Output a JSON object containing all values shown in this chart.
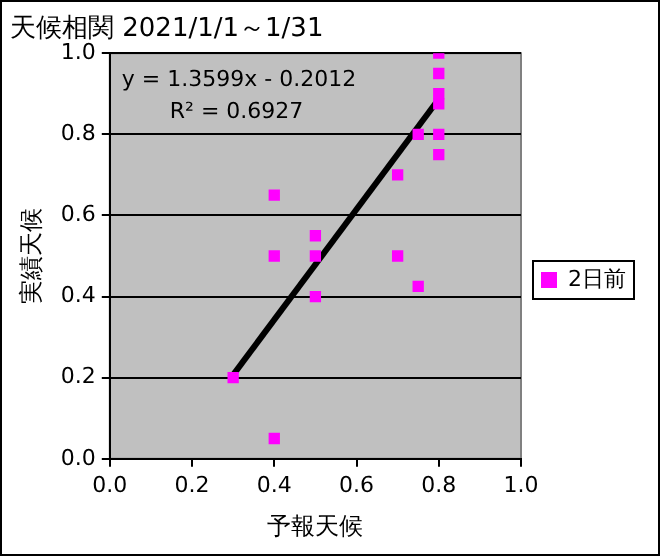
{
  "chart_data": {
    "type": "scatter",
    "title": "天候相関 2021/1/1～1/31",
    "xlabel": "予報天候",
    "ylabel": "実績天候",
    "annotations": [
      "y = 1.3599x - 0.2012",
      "R² = 0.6927"
    ],
    "series": [
      {
        "name": "2日前",
        "color": "#ff00ff",
        "marker": "square",
        "x": [
          0.3,
          0.4,
          0.4,
          0.4,
          0.5,
          0.5,
          0.5,
          0.7,
          0.7,
          0.75,
          0.75,
          0.8,
          0.8,
          0.8,
          0.8,
          0.8,
          0.8
        ],
        "values": [
          0.2,
          0.05,
          0.5,
          0.65,
          0.4,
          0.5,
          0.55,
          0.5,
          0.7,
          0.8,
          0.425,
          1.0,
          0.95,
          0.9,
          0.875,
          0.8,
          0.75
        ]
      },
      {
        "type": "line",
        "color": "#000000",
        "marker": "none",
        "x": [
          0.3,
          0.8
        ],
        "values": [
          0.207,
          0.887
        ]
      }
    ],
    "xlim": [
      0,
      1
    ],
    "ylim": [
      0,
      1
    ],
    "xticks": [
      {
        "value": 0,
        "label": "0.0"
      },
      {
        "value": 0.2,
        "label": "0.2"
      },
      {
        "value": 0.4,
        "label": "0.4"
      },
      {
        "value": 0.6,
        "label": "0.6"
      },
      {
        "value": 0.8,
        "label": "0.8"
      },
      {
        "value": 1,
        "label": "1.0"
      }
    ],
    "yticks": [
      {
        "value": 0,
        "label": "0.0"
      },
      {
        "value": 0.2,
        "label": "0.2"
      },
      {
        "value": 0.4,
        "label": "0.4"
      },
      {
        "value": 0.6,
        "label": "0.6"
      },
      {
        "value": 0.8,
        "label": "0.8"
      },
      {
        "value": 1,
        "label": "1.0"
      }
    ],
    "grid": "y",
    "legend": "right"
  }
}
